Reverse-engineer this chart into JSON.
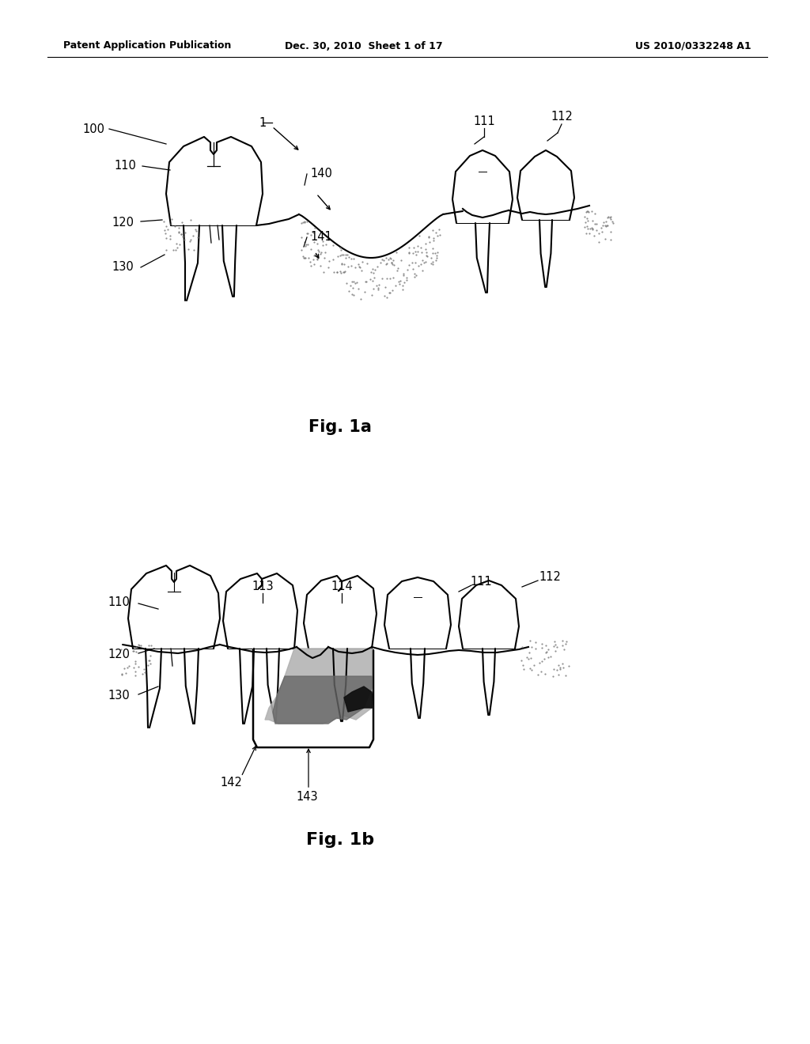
{
  "background_color": "#ffffff",
  "header_left": "Patent Application Publication",
  "header_center": "Dec. 30, 2010  Sheet 1 of 17",
  "header_right": "US 2010/0332248 A1",
  "fig1a_title": "Fig. 1a",
  "fig1b_title": "Fig. 1b",
  "page_width": 10.24,
  "page_height": 13.2,
  "dpi": 100
}
